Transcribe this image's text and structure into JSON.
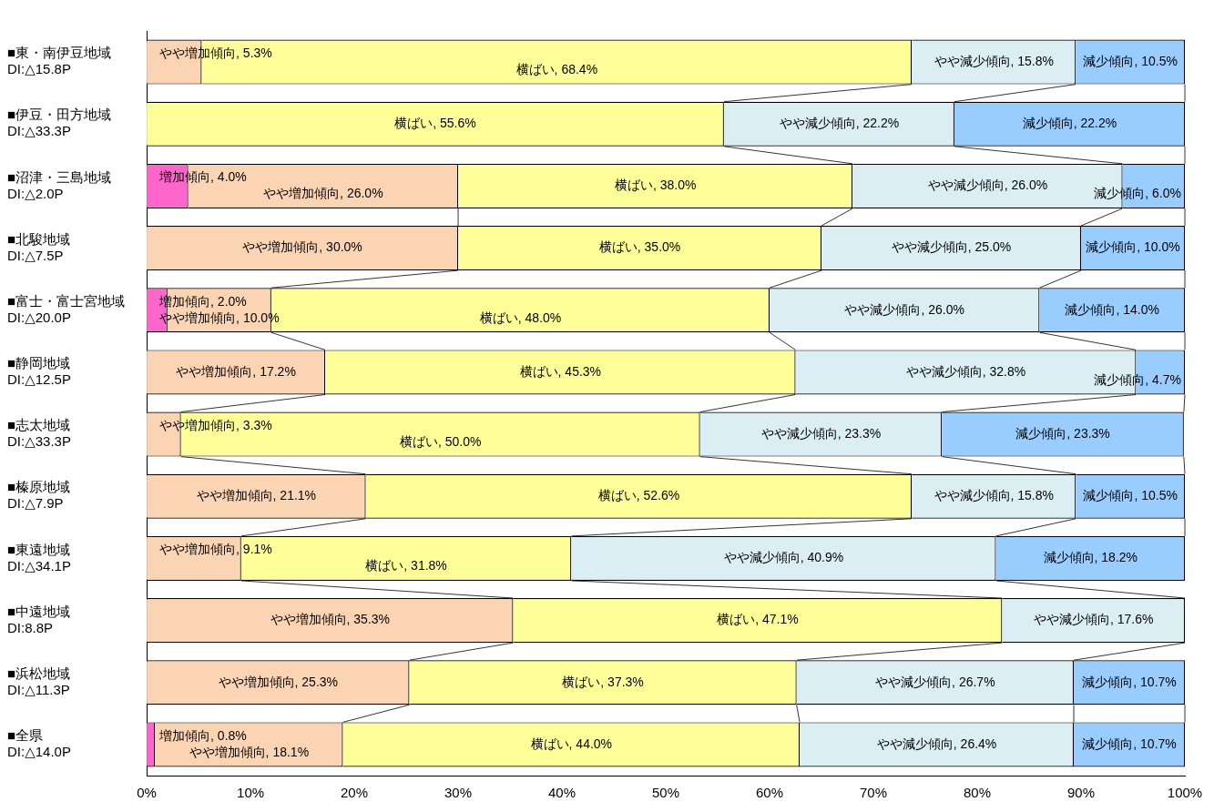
{
  "chart_data": {
    "type": "bar",
    "orientation": "horizontal",
    "stacked": true,
    "grid": false,
    "legend": false,
    "categories": [
      "■東・南伊豆地域\nDI:△15.8P",
      "■伊豆・田方地域\nDI:△33.3P",
      "■沼津・三島地域\nDI:△2.0P",
      "■北駿地域\nDI:△7.5P",
      "■富士・富士宮地域\nDI:△20.0P",
      "■静岡地域\nDI:△12.5P",
      "■志太地域\nDI:△33.3P",
      "■榛原地域\nDI:△7.9P",
      "■東遠地域\nDI:△34.1P",
      "■中遠地域\nDI:8.8P",
      "■浜松地域\nDI:△11.3P",
      "■全県\nDI:△14.0P"
    ],
    "xlim": [
      0,
      100
    ],
    "xticks": [
      {
        "value": 0,
        "label": "0%"
      },
      {
        "value": 10,
        "label": "10%"
      },
      {
        "value": 20,
        "label": "20%"
      },
      {
        "value": 30,
        "label": "30%"
      },
      {
        "value": 40,
        "label": "40%"
      },
      {
        "value": 50,
        "label": "50%"
      },
      {
        "value": 60,
        "label": "60%"
      },
      {
        "value": 70,
        "label": "70%"
      },
      {
        "value": 80,
        "label": "80%"
      },
      {
        "value": 90,
        "label": "90%"
      },
      {
        "value": 100,
        "label": "100%"
      }
    ],
    "series": [
      {
        "color": "#ff66cc",
        "values": [
          null,
          null,
          4.0,
          null,
          2.0,
          null,
          null,
          null,
          null,
          null,
          null,
          0.8
        ],
        "value_labels": [
          null,
          null,
          "増加傾向, 4.0%",
          null,
          "増加傾向, 2.0%",
          null,
          null,
          null,
          null,
          null,
          null,
          "増加傾向, 0.8%"
        ]
      },
      {
        "color": "#fbd4b4",
        "values": [
          5.3,
          null,
          26.0,
          30.0,
          10.0,
          17.2,
          3.3,
          21.1,
          9.1,
          35.3,
          25.3,
          18.1
        ],
        "value_labels": [
          "やや増加傾向, 5.3%",
          null,
          "やや増加傾向, 26.0%",
          "やや増加傾向, 30.0%",
          "やや増加傾向, 10.0%",
          "やや増加傾向, 17.2%",
          "やや増加傾向, 3.3%",
          "やや増加傾向, 21.1%",
          "やや増加傾向, 9.1%",
          "やや増加傾向, 35.3%",
          "やや増加傾向, 25.3%",
          "やや増加傾向, 18.1%"
        ]
      },
      {
        "color": "#ffff99",
        "values": [
          68.4,
          55.6,
          38.0,
          35.0,
          48.0,
          45.3,
          50.0,
          52.6,
          31.8,
          47.1,
          37.3,
          44.0
        ],
        "value_labels": [
          "横ばい, 68.4%",
          "横ばい, 55.6%",
          "横ばい, 38.0%",
          "横ばい, 35.0%",
          "横ばい, 48.0%",
          "横ばい, 45.3%",
          "横ばい, 50.0%",
          "横ばい, 52.6%",
          "横ばい, 31.8%",
          "横ばい, 47.1%",
          "横ばい, 37.3%",
          "横ばい, 44.0%"
        ]
      },
      {
        "color": "#dbeef4",
        "values": [
          15.8,
          22.2,
          26.0,
          25.0,
          26.0,
          32.8,
          23.3,
          15.8,
          40.9,
          17.6,
          26.7,
          26.4
        ],
        "value_labels": [
          "やや減少傾向, 15.8%",
          "やや減少傾向, 22.2%",
          "やや減少傾向, 26.0%",
          "やや減少傾向, 25.0%",
          "やや減少傾向, 26.0%",
          "やや減少傾向, 32.8%",
          "やや減少傾向, 23.3%",
          "やや減少傾向, 15.8%",
          "やや減少傾向, 40.9%",
          "やや減少傾向, 17.6%",
          "やや減少傾向, 26.7%",
          "やや減少傾向, 26.4%"
        ]
      },
      {
        "color": "#99ccff",
        "values": [
          10.5,
          22.2,
          6.0,
          10.0,
          14.0,
          4.7,
          23.3,
          10.5,
          18.2,
          null,
          10.7,
          10.7
        ],
        "value_labels": [
          "減少傾向, 10.5%",
          "減少傾向, 22.2%",
          "減少傾向, 6.0%",
          "減少傾向, 10.0%",
          "減少傾向, 14.0%",
          "減少傾向, 4.7%",
          "減少傾向, 23.3%",
          "減少傾向, 10.5%",
          "減少傾向, 18.2%",
          null,
          "減少傾向, 10.7%",
          "減少傾向, 10.7%"
        ]
      }
    ]
  }
}
